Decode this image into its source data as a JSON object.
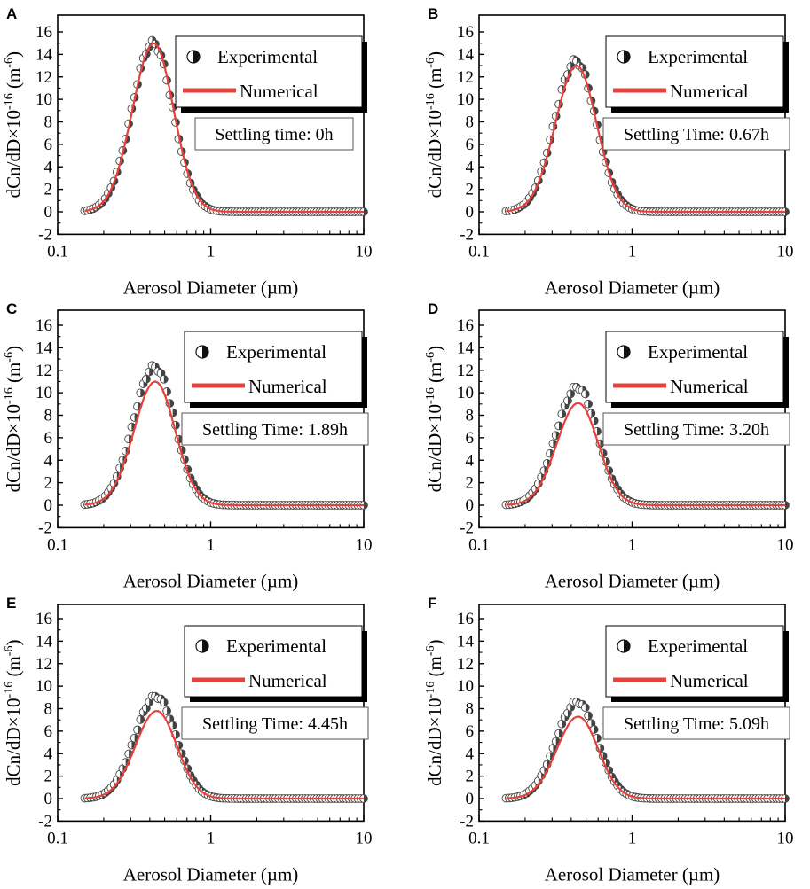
{
  "colors": {
    "numerical_line": "#e8413c",
    "marker_dark": "#444444",
    "marker_light": "#ffffff",
    "axis": "#000000"
  },
  "chart_data": [
    {
      "panel": "A",
      "type": "line+scatter",
      "xlabel": "Aerosol Diameter (µm)",
      "ylabel_main": "dCn/dD×10",
      "ylabel_exp1": "-16",
      "ylabel_mid": " (m",
      "ylabel_exp2": "-6",
      "ylabel_end": ")",
      "xscale": "log",
      "xlim": [
        0.1,
        10
      ],
      "ylim": [
        -2,
        17
      ],
      "xticks": [
        "0.1",
        "1",
        "10"
      ],
      "yticks": [
        "-2",
        "0",
        "2",
        "4",
        "6",
        "8",
        "10",
        "12",
        "14",
        "16"
      ],
      "legend": [
        "Experimental",
        "Numerical"
      ],
      "annotation": "Settling time: 0h",
      "exp_peak": 15.0,
      "num_peak": 15.0,
      "peak_d": 0.42
    },
    {
      "panel": "B",
      "type": "line+scatter",
      "xlabel": "Aerosol Diameter (µm)",
      "ylabel_main": "dCn/dD×10",
      "ylabel_exp1": "-16",
      "ylabel_mid": " (m",
      "ylabel_exp2": "-6",
      "ylabel_end": ")",
      "xscale": "log",
      "xlim": [
        0.1,
        10
      ],
      "ylim": [
        -2,
        17
      ],
      "xticks": [
        "0.1",
        "1",
        "10"
      ],
      "yticks": [
        "-2",
        "0",
        "2",
        "4",
        "6",
        "8",
        "10",
        "12",
        "14",
        "16"
      ],
      "legend": [
        "Experimental",
        "Numerical"
      ],
      "annotation": "Settling Time: 0.67h",
      "exp_peak": 13.4,
      "num_peak": 13.0,
      "peak_d": 0.43
    },
    {
      "panel": "C",
      "type": "line+scatter",
      "xlabel": "Aerosol Diameter (µm)",
      "ylabel_main": "dCn/dD×10",
      "ylabel_exp1": "-16",
      "ylabel_mid": " (m",
      "ylabel_exp2": "-6",
      "ylabel_end": ")",
      "xscale": "log",
      "xlim": [
        0.1,
        10
      ],
      "ylim": [
        -2,
        17
      ],
      "xticks": [
        "0.1",
        "1",
        "10"
      ],
      "yticks": [
        "-2",
        "0",
        "2",
        "4",
        "6",
        "8",
        "10",
        "12",
        "14",
        "16"
      ],
      "legend": [
        "Experimental",
        "Numerical"
      ],
      "annotation": "Settling Time: 1.89h",
      "exp_peak": 12.3,
      "num_peak": 11.0,
      "peak_d": 0.43
    },
    {
      "panel": "D",
      "type": "line+scatter",
      "xlabel": "Aerosol Diameter (µm)",
      "ylabel_main": "dCn/dD×10",
      "ylabel_exp1": "-16",
      "ylabel_mid": " (m",
      "ylabel_exp2": "-6",
      "ylabel_end": ")",
      "xscale": "log",
      "xlim": [
        0.1,
        10
      ],
      "ylim": [
        -2,
        17
      ],
      "xticks": [
        "0.1",
        "1",
        "10"
      ],
      "yticks": [
        "-2",
        "0",
        "2",
        "4",
        "6",
        "8",
        "10",
        "12",
        "14",
        "16"
      ],
      "legend": [
        "Experimental",
        "Numerical"
      ],
      "annotation": "Settling Time: 3.20h",
      "exp_peak": 10.5,
      "num_peak": 9.1,
      "peak_d": 0.44
    },
    {
      "panel": "E",
      "type": "line+scatter",
      "xlabel": "Aerosol Diameter (µm)",
      "ylabel_main": "dCn/dD×10",
      "ylabel_exp1": "-16",
      "ylabel_mid": " (m",
      "ylabel_exp2": "-6",
      "ylabel_end": ")",
      "xscale": "log",
      "xlim": [
        0.1,
        10
      ],
      "ylim": [
        -2,
        17
      ],
      "xticks": [
        "0.1",
        "1",
        "10"
      ],
      "yticks": [
        "-2",
        "0",
        "2",
        "4",
        "6",
        "8",
        "10",
        "12",
        "14",
        "16"
      ],
      "legend": [
        "Experimental",
        "Numerical"
      ],
      "annotation": "Settling Time: 4.45h",
      "exp_peak": 9.1,
      "num_peak": 7.8,
      "peak_d": 0.44
    },
    {
      "panel": "F",
      "type": "line+scatter",
      "xlabel": "Aerosol Diameter (µm)",
      "ylabel_main": "dCn/dD×10",
      "ylabel_exp1": "-16",
      "ylabel_mid": " (m",
      "ylabel_exp2": "-6",
      "ylabel_end": ")",
      "xscale": "log",
      "xlim": [
        0.1,
        10
      ],
      "ylim": [
        -2,
        17
      ],
      "xticks": [
        "0.1",
        "1",
        "10"
      ],
      "yticks": [
        "-2",
        "0",
        "2",
        "4",
        "6",
        "8",
        "10",
        "12",
        "14",
        "16"
      ],
      "legend": [
        "Experimental",
        "Numerical"
      ],
      "annotation": "Settling Time: 5.09h",
      "exp_peak": 8.6,
      "num_peak": 7.3,
      "peak_d": 0.44
    }
  ]
}
